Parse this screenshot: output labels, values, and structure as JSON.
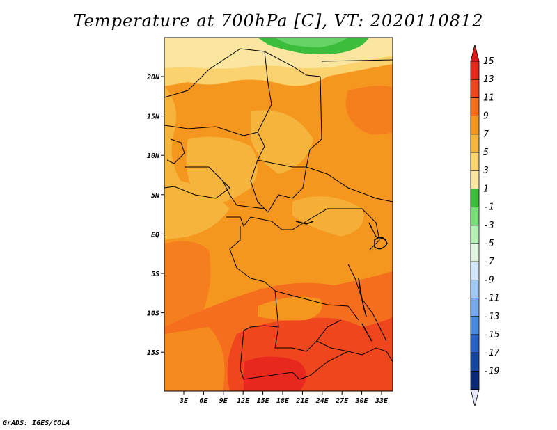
{
  "title": "Temperature at 700hPa [C], VT: 2020110812",
  "credit": "GrADS: IGES/COLA",
  "map": {
    "lon_ticks": [
      "3E",
      "6E",
      "9E",
      "12E",
      "15E",
      "18E",
      "21E",
      "24E",
      "27E",
      "30E",
      "33E"
    ],
    "lat_ticks": [
      "20N",
      "15N",
      "10N",
      "5N",
      "EQ",
      "5S",
      "10S",
      "15S"
    ]
  },
  "colorbar": {
    "labels": [
      "15",
      "13",
      "11",
      "9",
      "7",
      "5",
      "3",
      "1",
      "-1",
      "-3",
      "-5",
      "-7",
      "-9",
      "-11",
      "-13",
      "-15",
      "-17",
      "-19"
    ],
    "colors": [
      "#e8281e",
      "#f0461e",
      "#f56e1e",
      "#f5961e",
      "#f5b43c",
      "#fad26e",
      "#fae6a0",
      "#3cbe3c",
      "#78dc78",
      "#b4f0b4",
      "#e1f5e1",
      "#d2e6fa",
      "#a0c8f5",
      "#78aaeb",
      "#4b8ce1",
      "#2864c8",
      "#1446a0",
      "#0a2878"
    ]
  }
}
